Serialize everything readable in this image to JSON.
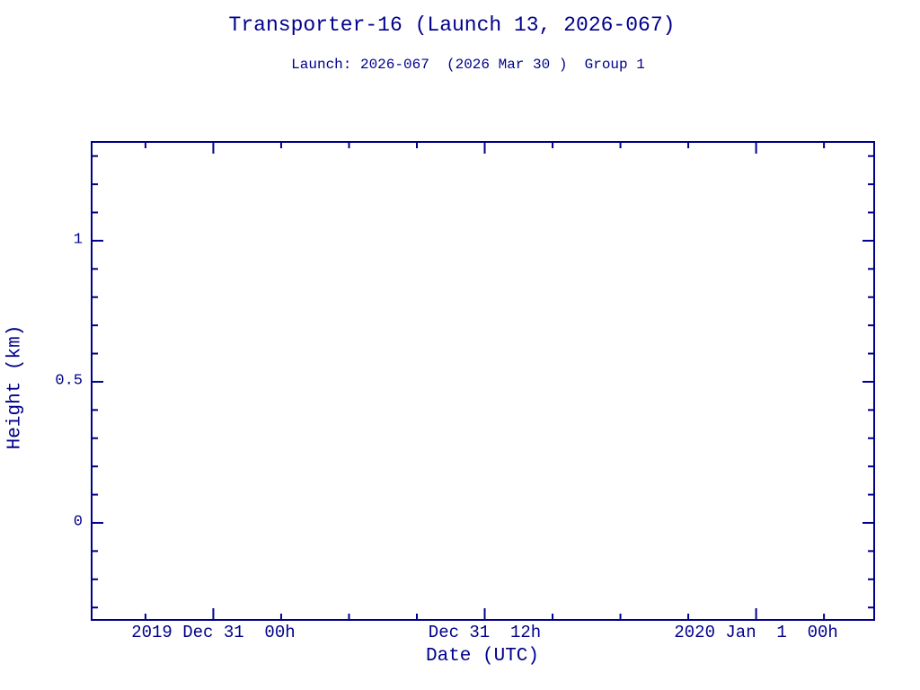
{
  "page": {
    "background": "#ffffff",
    "accent": "#00008B"
  },
  "chart_data": {
    "type": "line",
    "title": "Transporter-16 (Launch 13, 2026-067)",
    "subtitle": "Launch: 2026-067  (2026 Mar 30 )  Group 1",
    "xlabel": "Date (UTC)",
    "ylabel": "Height (km)",
    "x_axis": {
      "range": [
        -5.38,
        29.22
      ],
      "major_ticks": [
        {
          "value": 0,
          "label": "2019 Dec 31  00h"
        },
        {
          "value": 12,
          "label": "Dec 31  12h"
        },
        {
          "value": 24,
          "label": "2020 Jan  1  00h"
        }
      ],
      "minor_tick_step": 3
    },
    "y_axis": {
      "range": [
        -0.344,
        1.35
      ],
      "major_ticks": [
        {
          "value": 0,
          "label": "0"
        },
        {
          "value": 0.5,
          "label": "0.5"
        },
        {
          "value": 1,
          "label": "1"
        }
      ],
      "minor_tick_step": 0.1
    },
    "grid": false,
    "legend": null,
    "series": []
  }
}
